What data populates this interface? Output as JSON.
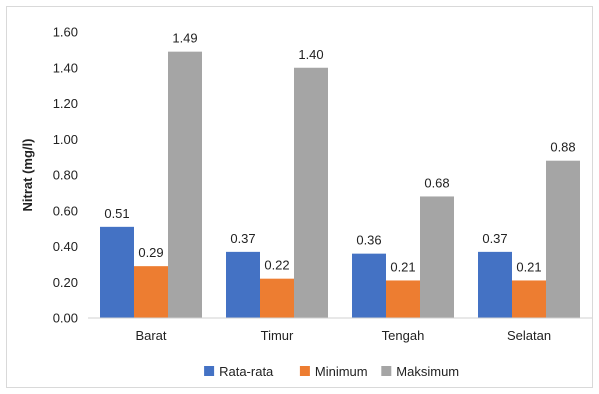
{
  "chart_data": {
    "type": "bar",
    "title": "",
    "xlabel": "",
    "ylabel": "Nitrat (mg/l)",
    "categories": [
      "Barat",
      "Timur",
      "Tengah",
      "Selatan"
    ],
    "series": [
      {
        "name": "Rata-rata",
        "color": "#4472C4",
        "values": [
          0.51,
          0.37,
          0.36,
          0.37
        ],
        "labels": [
          "0.51",
          "0.37",
          "0.36",
          "0.37"
        ]
      },
      {
        "name": "Minimum",
        "color": "#ED7D31",
        "values": [
          0.29,
          0.22,
          0.21,
          0.21
        ],
        "labels": [
          "0.29",
          "0.22",
          "0.21",
          "0.21"
        ]
      },
      {
        "name": "Maksimum",
        "color": "#A5A5A5",
        "values": [
          1.49,
          1.4,
          0.68,
          0.88
        ],
        "labels": [
          "1.49",
          "1.40",
          "0.68",
          "0.88"
        ]
      }
    ],
    "ylim": [
      0,
      1.6
    ],
    "yticks": [
      0,
      0.2,
      0.4,
      0.6,
      0.8,
      1.0,
      1.2,
      1.4,
      1.6
    ],
    "ytick_labels": [
      "0.00",
      "0.20",
      "0.40",
      "0.60",
      "0.80",
      "1.00",
      "1.20",
      "1.40",
      "1.60"
    ],
    "grid": false,
    "legend_position": "bottom"
  }
}
